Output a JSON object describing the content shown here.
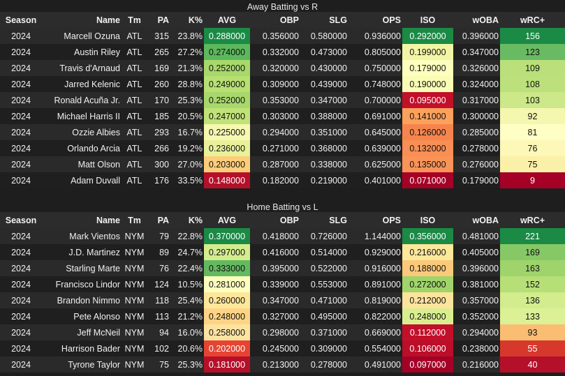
{
  "chart_data": [
    {
      "type": "table",
      "title": "Away Batting vs R",
      "columns": [
        "Season",
        "Name",
        "Tm",
        "PA",
        "K%",
        "AVG",
        "OBP",
        "SLG",
        "OPS",
        "ISO",
        "wOBA",
        "wRC+"
      ],
      "rows": [
        [
          "2024",
          "Marcell Ozuna",
          "ATL",
          "315",
          "23.8%",
          "0.288000",
          "0.356000",
          "0.580000",
          "0.936000",
          "0.292000",
          "0.396000",
          "156"
        ],
        [
          "2024",
          "Austin Riley",
          "ATL",
          "265",
          "27.2%",
          "0.274000",
          "0.332000",
          "0.473000",
          "0.805000",
          "0.199000",
          "0.347000",
          "123"
        ],
        [
          "2024",
          "Travis d'Arnaud",
          "ATL",
          "169",
          "21.3%",
          "0.252000",
          "0.320000",
          "0.430000",
          "0.750000",
          "0.179000",
          "0.326000",
          "109"
        ],
        [
          "2024",
          "Jarred Kelenic",
          "ATL",
          "260",
          "28.8%",
          "0.249000",
          "0.309000",
          "0.439000",
          "0.748000",
          "0.190000",
          "0.324000",
          "108"
        ],
        [
          "2024",
          "Ronald Acuña Jr.",
          "ATL",
          "170",
          "25.3%",
          "0.252000",
          "0.353000",
          "0.347000",
          "0.700000",
          "0.095000",
          "0.317000",
          "103"
        ],
        [
          "2024",
          "Michael Harris II",
          "ATL",
          "185",
          "20.5%",
          "0.247000",
          "0.303000",
          "0.388000",
          "0.691000",
          "0.141000",
          "0.300000",
          "92"
        ],
        [
          "2024",
          "Ozzie Albies",
          "ATL",
          "293",
          "16.7%",
          "0.225000",
          "0.294000",
          "0.351000",
          "0.645000",
          "0.126000",
          "0.285000",
          "81"
        ],
        [
          "2024",
          "Orlando Arcia",
          "ATL",
          "266",
          "19.2%",
          "0.236000",
          "0.271000",
          "0.368000",
          "0.639000",
          "0.132000",
          "0.278000",
          "76"
        ],
        [
          "2024",
          "Matt Olson",
          "ATL",
          "300",
          "27.0%",
          "0.203000",
          "0.287000",
          "0.338000",
          "0.625000",
          "0.135000",
          "0.276000",
          "75"
        ],
        [
          "2024",
          "Adam Duvall",
          "ATL",
          "176",
          "33.5%",
          "0.148000",
          "0.182000",
          "0.219000",
          "0.401000",
          "0.071000",
          "0.179000",
          "9"
        ]
      ],
      "heat_colors": {
        "AVG": [
          "#1a8a45",
          "#5bb85c",
          "#a8d86b",
          "#b7df72",
          "#a8d86b",
          "#c0e278",
          "#f7f8b0",
          "#e8f19a",
          "#fdcd7a",
          "#b5102a"
        ],
        "ISO": [
          "#1a8a45",
          "#f2f5a4",
          "#fdfebe",
          "#fafcb5",
          "#c20f2a",
          "#fba15c",
          "#f6854d",
          "#f98f54",
          "#fa9357",
          "#a50026"
        ],
        "wRC+": [
          "#1a8a45",
          "#69bb63",
          "#b9e07a",
          "#bce17c",
          "#cce888",
          "#f4f7ae",
          "#fffec4",
          "#fdf8b8",
          "#fbf0a8",
          "#a50026"
        ]
      }
    },
    {
      "type": "table",
      "title": "Home Batting vs L",
      "columns": [
        "Season",
        "Name",
        "Tm",
        "PA",
        "K%",
        "AVG",
        "OBP",
        "SLG",
        "OPS",
        "ISO",
        "wOBA",
        "wRC+"
      ],
      "rows": [
        [
          "2024",
          "Mark Vientos",
          "NYM",
          "79",
          "22.8%",
          "0.370000",
          "0.418000",
          "0.726000",
          "1.144000",
          "0.356000",
          "0.481000",
          "221"
        ],
        [
          "2024",
          "J.D. Martinez",
          "NYM",
          "89",
          "24.7%",
          "0.297000",
          "0.416000",
          "0.514000",
          "0.929000",
          "0.216000",
          "0.405000",
          "169"
        ],
        [
          "2024",
          "Starling Marte",
          "NYM",
          "76",
          "22.4%",
          "0.333000",
          "0.395000",
          "0.522000",
          "0.916000",
          "0.188000",
          "0.396000",
          "163"
        ],
        [
          "2024",
          "Francisco Lindor",
          "NYM",
          "124",
          "10.5%",
          "0.281000",
          "0.339000",
          "0.553000",
          "0.891000",
          "0.272000",
          "0.381000",
          "152"
        ],
        [
          "2024",
          "Brandon Nimmo",
          "NYM",
          "118",
          "25.4%",
          "0.260000",
          "0.347000",
          "0.471000",
          "0.819000",
          "0.212000",
          "0.357000",
          "136"
        ],
        [
          "2024",
          "Pete Alonso",
          "NYM",
          "113",
          "21.2%",
          "0.248000",
          "0.327000",
          "0.495000",
          "0.822000",
          "0.248000",
          "0.352000",
          "133"
        ],
        [
          "2024",
          "Jeff McNeil",
          "NYM",
          "94",
          "16.0%",
          "0.258000",
          "0.298000",
          "0.371000",
          "0.669000",
          "0.112000",
          "0.294000",
          "93"
        ],
        [
          "2024",
          "Harrison Bader",
          "NYM",
          "102",
          "20.6%",
          "0.202000",
          "0.245000",
          "0.309000",
          "0.554000",
          "0.106000",
          "0.238000",
          "55"
        ],
        [
          "2024",
          "Tyrone Taylor",
          "NYM",
          "75",
          "25.3%",
          "0.181000",
          "0.213000",
          "0.278000",
          "0.491000",
          "0.097000",
          "0.216000",
          "40"
        ]
      ],
      "heat_colors": {
        "AVG": [
          "#1a8a45",
          "#d3ec8e",
          "#63b960",
          "#fdfebe",
          "#fde79a",
          "#fdd485",
          "#fee3a0",
          "#e64432",
          "#b5102a"
        ],
        "ISO": [
          "#1a8a45",
          "#fde79a",
          "#fbc97a",
          "#a0d46a",
          "#fee39d",
          "#d9ef8f",
          "#c20f2a",
          "#bb0e29",
          "#a50026"
        ],
        "wRC+": [
          "#1a8a45",
          "#87c866",
          "#9fd36c",
          "#b7df77",
          "#d2ec8e",
          "#dcf096",
          "#fbbd71",
          "#d7382c",
          "#b5102a"
        ]
      }
    }
  ]
}
